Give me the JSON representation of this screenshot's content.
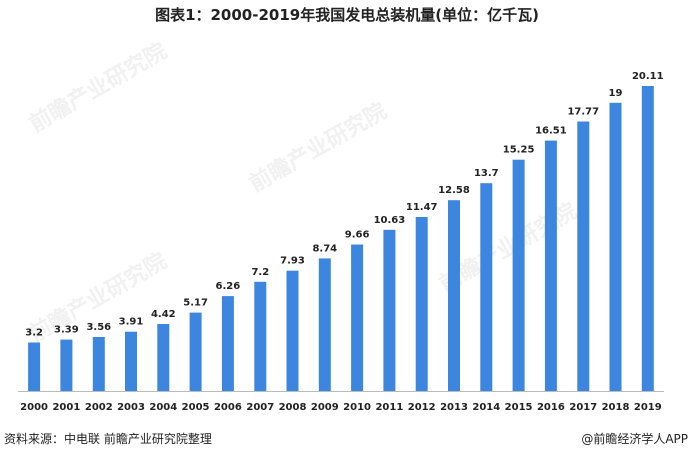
{
  "title": "图表1：2000-2019年我国发电总装机量(单位：亿千瓦)",
  "source": "资料来源：中电联 前瞻产业研究院整理",
  "brand": "@前瞻经济学人APP",
  "colors": {
    "bar": "#3C86E0",
    "axis": "#BBBBBB"
  },
  "chart_data": {
    "type": "bar",
    "categories": [
      "2000",
      "2001",
      "2002",
      "2003",
      "2004",
      "2005",
      "2006",
      "2007",
      "2008",
      "2009",
      "2010",
      "2011",
      "2012",
      "2013",
      "2014",
      "2015",
      "2016",
      "2017",
      "2018",
      "2019"
    ],
    "values": [
      3.2,
      3.39,
      3.56,
      3.91,
      4.42,
      5.17,
      6.26,
      7.2,
      7.93,
      8.74,
      9.66,
      10.63,
      11.47,
      12.58,
      13.7,
      15.25,
      16.51,
      17.77,
      19,
      20.11
    ],
    "labels": [
      "3.2",
      "3.39",
      "3.56",
      "3.91",
      "4.42",
      "5.17",
      "6.26",
      "7.2",
      "7.93",
      "8.74",
      "9.66",
      "10.63",
      "11.47",
      "12.58",
      "13.7",
      "15.25",
      "16.51",
      "17.77",
      "19",
      "20.11"
    ],
    "title": "图表1：2000-2019年我国发电总装机量(单位：亿千瓦)",
    "xlabel": "",
    "ylabel": "",
    "grid": false,
    "legend": "none"
  }
}
